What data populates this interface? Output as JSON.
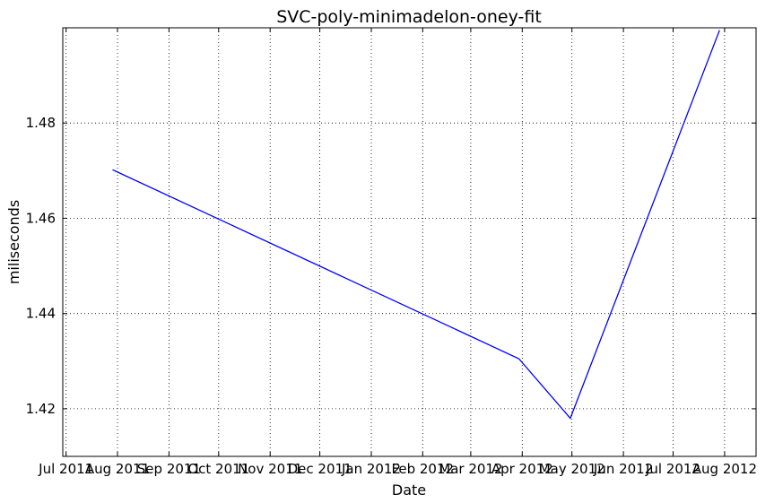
{
  "chart_data": {
    "type": "line",
    "title": "SVC-poly-minimadelon-oney-fit",
    "xlabel": "Date",
    "ylabel": "miliseconds",
    "xlim": [
      "2011-06-29",
      "2012-08-20"
    ],
    "ylim": [
      1.41,
      1.5
    ],
    "x_ticks": [
      {
        "date": "2011-07-01",
        "label": "Jul 2011"
      },
      {
        "date": "2011-08-01",
        "label": "Aug 2011"
      },
      {
        "date": "2011-09-01",
        "label": "Sep 2011"
      },
      {
        "date": "2011-10-01",
        "label": "Oct 2011"
      },
      {
        "date": "2011-11-01",
        "label": "Nov 2011"
      },
      {
        "date": "2011-12-01",
        "label": "Dec 2011"
      },
      {
        "date": "2012-01-01",
        "label": "Jan 2012"
      },
      {
        "date": "2012-02-01",
        "label": "Feb 2012"
      },
      {
        "date": "2012-03-01",
        "label": "Mar 2012"
      },
      {
        "date": "2012-04-01",
        "label": "Apr 2012"
      },
      {
        "date": "2012-05-01",
        "label": "May 2012"
      },
      {
        "date": "2012-06-01",
        "label": "Jun 2012"
      },
      {
        "date": "2012-07-01",
        "label": "Jul 2012"
      },
      {
        "date": "2012-08-01",
        "label": "Aug 2012"
      }
    ],
    "y_ticks": [
      {
        "value": 1.42,
        "label": "1.42"
      },
      {
        "value": 1.44,
        "label": "1.44"
      },
      {
        "value": 1.46,
        "label": "1.46"
      },
      {
        "value": 1.48,
        "label": "1.48"
      }
    ],
    "grid": true,
    "series": [
      {
        "color": "#0000ff",
        "x": [
          "2011-07-29",
          "2012-03-30",
          "2012-04-30",
          "2012-07-29"
        ],
        "y": [
          1.4702,
          1.4305,
          1.418,
          1.4995
        ]
      }
    ]
  }
}
